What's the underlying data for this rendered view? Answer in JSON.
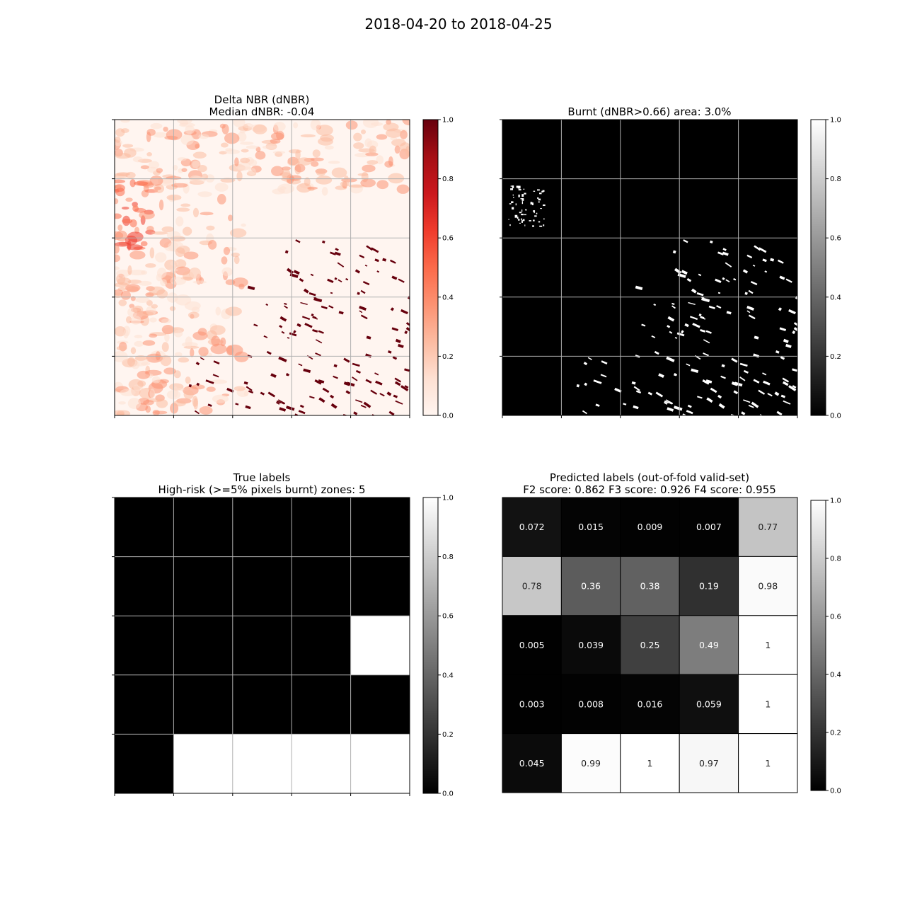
{
  "figure": {
    "title": "2018-04-20 to 2018-04-25"
  },
  "chart_data": [
    {
      "type": "heatmap",
      "title": "Delta NBR (dNBR)",
      "subtitle": "Median dNBR: -0.04",
      "colormap": "Reds",
      "colorbar_range": [
        0,
        1
      ],
      "colorbar_ticks": [
        "0.0",
        "0.2",
        "0.4",
        "0.6",
        "0.8",
        "1.0"
      ],
      "grid": true
    },
    {
      "type": "heatmap",
      "title": "Burnt (dNBR>0.66) area: 3.0%",
      "colormap": "gray",
      "colorbar_range": [
        0,
        1
      ],
      "colorbar_ticks": [
        "0.0",
        "0.2",
        "0.4",
        "0.6",
        "0.8",
        "1.0"
      ],
      "grid": true
    },
    {
      "type": "heatmap",
      "title": "True labels",
      "subtitle": "High-risk (>=5% pixels burnt) zones: 5",
      "colormap": "gray",
      "colorbar_range": [
        0,
        1
      ],
      "colorbar_ticks": [
        "0.0",
        "0.2",
        "0.4",
        "0.6",
        "0.8",
        "1.0"
      ],
      "grid": true,
      "values": [
        [
          0,
          0,
          0,
          0,
          0
        ],
        [
          0,
          0,
          0,
          0,
          0
        ],
        [
          0,
          0,
          0,
          0,
          1
        ],
        [
          0,
          0,
          0,
          0,
          0
        ],
        [
          0,
          1,
          1,
          1,
          1
        ]
      ]
    },
    {
      "type": "heatmap",
      "title": "Predicted labels (out-of-fold valid-set)",
      "subtitle": "F2 score: 0.862 F3 score: 0.926 F4 score: 0.955",
      "colormap": "gray",
      "colorbar_range": [
        0,
        1
      ],
      "colorbar_ticks": [
        "0.0",
        "0.2",
        "0.4",
        "0.6",
        "0.8",
        "1.0"
      ],
      "grid": true,
      "values": [
        [
          0.072,
          0.015,
          0.009,
          0.007,
          0.77
        ],
        [
          0.78,
          0.36,
          0.38,
          0.19,
          0.98
        ],
        [
          0.005,
          0.039,
          0.25,
          0.49,
          1
        ],
        [
          0.003,
          0.008,
          0.016,
          0.059,
          1
        ],
        [
          0.045,
          0.99,
          1,
          0.97,
          1
        ]
      ],
      "cell_labels": [
        [
          "0.072",
          "0.015",
          "0.009",
          "0.007",
          "0.77"
        ],
        [
          "0.78",
          "0.36",
          "0.38",
          "0.19",
          "0.98"
        ],
        [
          "0.005",
          "0.039",
          "0.25",
          "0.49",
          "1"
        ],
        [
          "0.003",
          "0.008",
          "0.016",
          "0.059",
          "1"
        ],
        [
          "0.045",
          "0.99",
          "1",
          "0.97",
          "1"
        ]
      ]
    }
  ],
  "colors": {
    "reds_low": "#fff5f0",
    "reds_high": "#67000d",
    "grid": "#b0b0b0"
  }
}
